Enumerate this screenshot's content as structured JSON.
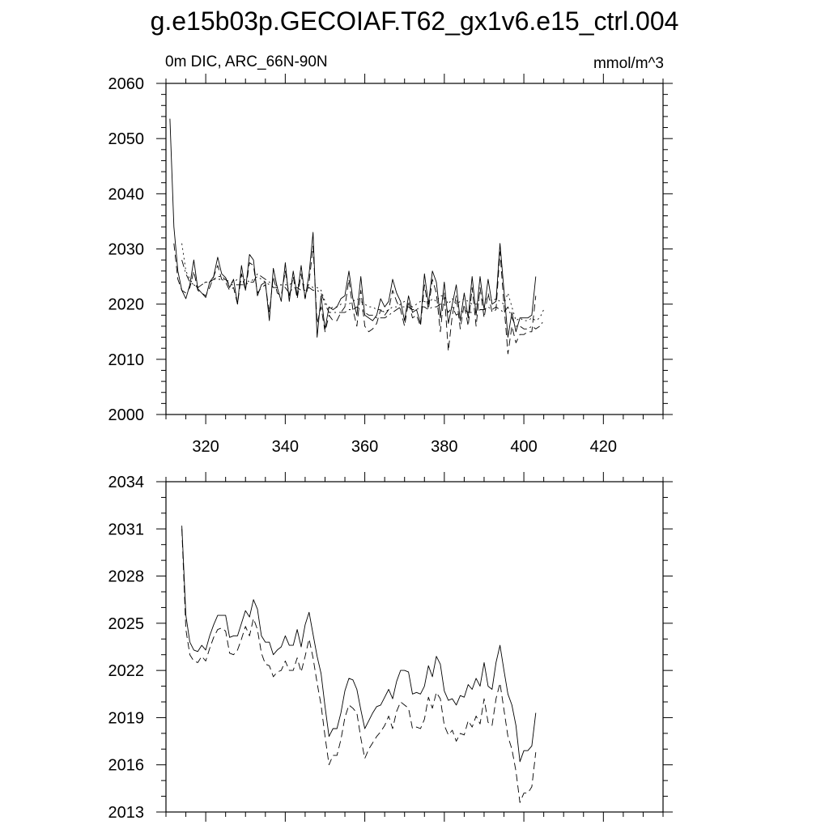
{
  "title": "g.e15b03p.GECOIAF.T62_gx1v6.e15_ctrl.004",
  "subtitle_left": "0m DIC, ARC_66N-90N",
  "subtitle_right": "mmol/m^3",
  "chart_data": [
    {
      "type": "line",
      "xlim": [
        310,
        435
      ],
      "ylim": [
        2000,
        2060
      ],
      "xticks": [
        320,
        340,
        360,
        380,
        400,
        420
      ],
      "yticks": [
        2000,
        2010,
        2020,
        2030,
        2040,
        2050,
        2060
      ],
      "grid": false,
      "series": [
        {
          "style": "solid",
          "x_start": 311,
          "values": [
            2053.6,
            2034.0,
            2026.0,
            2022.5,
            2021.0,
            2023.5,
            2028.0,
            2022.8,
            2022.0,
            2021.2,
            2024.0,
            2025.0,
            2028.5,
            2025.5,
            2024.8,
            2023.0,
            2024.5,
            2020.0,
            2027.0,
            2022.5,
            2029.0,
            2028.0,
            2021.5,
            2023.5,
            2024.0,
            2017.0,
            2026.5,
            2023.0,
            2020.5,
            2027.5,
            2020.5,
            2026.0,
            2021.5,
            2027.0,
            2021.0,
            2025.5,
            2033.0,
            2014.0,
            2021.5,
            2015.5,
            2019.5,
            2019.0,
            2019.5,
            2021.0,
            2021.5,
            2026.0,
            2021.0,
            2018.0,
            2025.0,
            2018.0,
            2017.5,
            2017.0,
            2018.0,
            2021.0,
            2019.5,
            2020.5,
            2024.5,
            2022.0,
            2020.5,
            2017.0,
            2021.5,
            2018.5,
            2019.0,
            2016.5,
            2025.5,
            2020.0,
            2026.0,
            2024.0,
            2017.5,
            2024.0,
            2016.5,
            2020.0,
            2023.5,
            2017.0,
            2022.0,
            2017.5,
            2025.0,
            2018.0,
            2025.0,
            2019.0,
            2024.5,
            2020.0,
            2020.5,
            2031.0,
            2022.5,
            2014.0,
            2018.5,
            2015.0,
            2017.5,
            2017.5,
            2017.5,
            2018.0,
            2025.0
          ]
        },
        {
          "style": "dashed",
          "x_start": 312,
          "values": [
            2031.0,
            2024.5,
            2022.5,
            2022.0,
            2023.0,
            2026.0,
            2022.5,
            2022.0,
            2021.5,
            2023.0,
            2025.0,
            2027.0,
            2024.5,
            2024.0,
            2022.5,
            2023.0,
            2020.0,
            2025.5,
            2022.5,
            2027.5,
            2027.0,
            2022.0,
            2023.0,
            2023.5,
            2018.5,
            2025.0,
            2022.0,
            2021.5,
            2026.0,
            2021.5,
            2025.0,
            2021.0,
            2025.5,
            2021.0,
            2024.0,
            2030.5,
            2016.5,
            2019.5,
            2015.0,
            2018.0,
            2017.0,
            2017.0,
            2018.5,
            2019.5,
            2024.5,
            2019.0,
            2016.0,
            2022.5,
            2016.0,
            2015.0,
            2015.5,
            2016.5,
            2019.0,
            2018.0,
            2019.0,
            2022.5,
            2020.5,
            2019.0,
            2016.0,
            2020.5,
            2017.5,
            2018.0,
            2016.0,
            2023.5,
            2019.0,
            2024.5,
            2022.0,
            2015.0,
            2022.0,
            2011.5,
            2018.0,
            2021.5,
            2015.5,
            2020.0,
            2016.0,
            2023.0,
            2016.0,
            2023.0,
            2017.5,
            2022.0,
            2018.5,
            2019.0,
            2029.5,
            2020.0,
            2011.0,
            2016.0,
            2013.0,
            2014.5,
            2014.5,
            2015.0,
            2015.0,
            2021.5
          ]
        },
        {
          "style": "dotted",
          "x_start": 314,
          "values": [
            2031.0,
            2026.0,
            2024.5,
            2023.5,
            2023.0,
            2023.5,
            2024.0,
            2024.0,
            2024.5,
            2025.0,
            2025.0,
            2024.5,
            2024.0,
            2024.0,
            2024.5,
            2024.0,
            2024.5,
            2024.0,
            2024.5,
            2025.0,
            2024.5,
            2024.0,
            2023.5,
            2023.0,
            2023.5,
            2023.5,
            2023.5,
            2023.5,
            2024.0,
            2023.5,
            2023.5,
            2023.5,
            2023.5,
            2023.0,
            2023.0,
            2022.5,
            2020.5,
            2019.0,
            2019.5,
            2019.5,
            2020.0,
            2020.0,
            2020.0,
            2020.5,
            2021.0,
            2020.5,
            2020.0,
            2019.5,
            2019.5,
            2019.0,
            2019.0,
            2018.5,
            2019.0,
            2019.5,
            2019.5,
            2020.0,
            2020.5,
            2020.0,
            2019.5,
            2020.0,
            2020.5,
            2020.5,
            2020.0,
            2021.0,
            2020.5,
            2021.5,
            2021.5,
            2020.0,
            2021.0,
            2020.0,
            2020.5,
            2021.0,
            2020.5,
            2020.0,
            2020.0,
            2021.0,
            2020.5,
            2021.5,
            2020.5,
            2021.0,
            2020.5,
            2020.0,
            2022.0,
            2019.5,
            2017.0,
            2017.5,
            2017.0,
            2017.0,
            2017.5,
            2017.0,
            2017.5,
            2019.0
          ]
        },
        {
          "style": "dashdot",
          "x_start": 314,
          "values": [
            2028.0,
            2025.5,
            2024.0,
            2023.5,
            2023.0,
            2023.5,
            2024.0,
            2024.0,
            2024.5,
            2024.5,
            2024.5,
            2024.5,
            2023.5,
            2023.5,
            2023.5,
            2023.5,
            2023.5,
            2024.0,
            2024.0,
            2025.5,
            2025.0,
            2024.5,
            2024.0,
            2023.0,
            2023.0,
            2023.5,
            2023.0,
            2022.0,
            2023.0,
            2023.0,
            2022.5,
            2022.5,
            2023.0,
            2022.5,
            2022.5,
            2022.0,
            2020.0,
            2018.5,
            2018.5,
            2018.5,
            2018.5,
            2018.5,
            2019.0,
            2019.0,
            2019.5,
            2019.0,
            2018.5,
            2018.0,
            2018.0,
            2017.5,
            2017.5,
            2017.5,
            2018.0,
            2018.5,
            2019.0,
            2019.5,
            2019.5,
            2019.5,
            2019.0,
            2019.0,
            2019.5,
            2019.5,
            2019.0,
            2019.5,
            2019.5,
            2020.0,
            2020.0,
            2018.5,
            2019.5,
            2018.0,
            2018.5,
            2019.0,
            2018.5,
            2018.5,
            2018.5,
            2019.0,
            2019.0,
            2019.5,
            2019.0,
            2019.5,
            2019.0,
            2018.5,
            2019.5,
            2017.5,
            2016.0,
            2016.0,
            2015.5,
            2015.5,
            2016.0,
            2015.5,
            2016.0,
            2017.0
          ]
        }
      ]
    },
    {
      "type": "line",
      "xlim": [
        310,
        435
      ],
      "ylim": [
        2013,
        2034
      ],
      "xticks": [
        320,
        340,
        360,
        380,
        400,
        420
      ],
      "yticks": [
        2013,
        2016,
        2019,
        2022,
        2025,
        2028,
        2031,
        2034
      ],
      "grid": false,
      "series": [
        {
          "style": "solid",
          "x_start": 314,
          "values": [
            2031.2,
            2025.5,
            2023.8,
            2023.3,
            2023.2,
            2023.6,
            2023.3,
            2024.2,
            2024.9,
            2025.5,
            2025.5,
            2025.5,
            2024.1,
            2024.2,
            2024.2,
            2025.0,
            2025.8,
            2025.4,
            2026.5,
            2025.9,
            2024.2,
            2023.8,
            2023.8,
            2023.0,
            2023.3,
            2023.5,
            2024.2,
            2023.6,
            2023.6,
            2024.6,
            2023.5,
            2024.9,
            2025.7,
            2024.3,
            2022.9,
            2021.8,
            2019.7,
            2017.8,
            2018.3,
            2018.3,
            2019.3,
            2020.7,
            2021.5,
            2021.4,
            2020.8,
            2019.5,
            2018.3,
            2018.8,
            2019.3,
            2019.7,
            2019.8,
            2020.3,
            2020.8,
            2020.2,
            2021.3,
            2022.0,
            2022.0,
            2021.9,
            2020.5,
            2020.6,
            2020.5,
            2021.0,
            2022.3,
            2021.6,
            2022.9,
            2022.4,
            2020.7,
            2020.1,
            2020.2,
            2019.8,
            2020.4,
            2020.3,
            2021.1,
            2020.8,
            2021.5,
            2021.0,
            2022.5,
            2021.0,
            2020.8,
            2022.5,
            2023.6,
            2022.0,
            2020.5,
            2019.8,
            2018.5,
            2016.2,
            2016.9,
            2016.9,
            2017.2,
            2019.3
          ]
        },
        {
          "style": "dashed",
          "x_start": 314,
          "values": [
            2031.0,
            2024.6,
            2023.0,
            2022.6,
            2022.5,
            2022.9,
            2022.6,
            2023.4,
            2024.1,
            2024.6,
            2024.7,
            2024.5,
            2023.1,
            2023.0,
            2023.3,
            2024.0,
            2024.8,
            2024.2,
            2025.3,
            2024.6,
            2023.1,
            2022.4,
            2022.3,
            2021.6,
            2021.9,
            2022.0,
            2022.6,
            2022.0,
            2022.0,
            2022.8,
            2021.9,
            2022.9,
            2024.0,
            2022.8,
            2021.2,
            2019.8,
            2017.8,
            2016.0,
            2016.6,
            2016.6,
            2017.6,
            2019.0,
            2019.8,
            2019.6,
            2019.3,
            2017.7,
            2016.4,
            2017.0,
            2017.4,
            2017.8,
            2018.1,
            2018.5,
            2019.1,
            2018.3,
            2019.4,
            2020.0,
            2019.8,
            2019.6,
            2018.3,
            2018.4,
            2018.3,
            2018.9,
            2020.3,
            2019.6,
            2020.6,
            2020.2,
            2018.5,
            2017.9,
            2018.2,
            2017.5,
            2018.0,
            2017.9,
            2018.8,
            2018.4,
            2019.1,
            2018.6,
            2020.2,
            2018.7,
            2018.5,
            2020.2,
            2021.2,
            2019.5,
            2017.8,
            2017.0,
            2015.6,
            2013.6,
            2014.2,
            2014.2,
            2014.6,
            2016.8
          ]
        }
      ]
    }
  ]
}
